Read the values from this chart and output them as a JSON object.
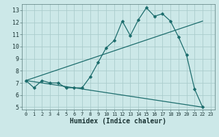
{
  "xlabel": "Humidex (Indice chaleur)",
  "bg_color": "#cce8e8",
  "grid_color": "#aacccc",
  "line_color": "#1a6b6b",
  "xlim": [
    -0.5,
    23.5
  ],
  "ylim": [
    4.8,
    13.5
  ],
  "xticks": [
    0,
    1,
    2,
    3,
    4,
    5,
    6,
    7,
    8,
    9,
    10,
    11,
    12,
    13,
    14,
    15,
    16,
    17,
    18,
    19,
    20,
    21,
    22,
    23
  ],
  "yticks": [
    5,
    6,
    7,
    8,
    9,
    10,
    11,
    12,
    13
  ],
  "line1_x": [
    0,
    1,
    2,
    3,
    4,
    5,
    6,
    7,
    8,
    9,
    10,
    11,
    12,
    13,
    14,
    15,
    16,
    17,
    18,
    19,
    20,
    21,
    22
  ],
  "line1_y": [
    7.2,
    6.6,
    7.2,
    7.0,
    7.0,
    6.6,
    6.6,
    6.6,
    7.5,
    8.7,
    9.9,
    10.5,
    12.1,
    10.9,
    12.2,
    13.2,
    12.5,
    12.7,
    12.1,
    10.8,
    9.3,
    6.5,
    5.0
  ],
  "line2_x": [
    0,
    22
  ],
  "line2_y": [
    7.2,
    12.1
  ],
  "line3_x": [
    0,
    22
  ],
  "line3_y": [
    7.2,
    5.0
  ],
  "marker_size": 2.5,
  "xlabel_fontsize": 7,
  "tick_fontsize": 6
}
